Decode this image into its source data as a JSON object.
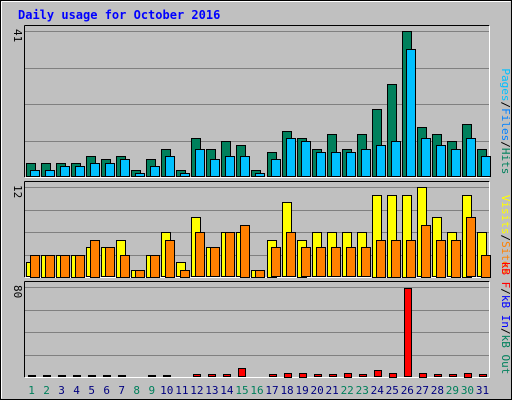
{
  "title": "Daily usage for October 2016",
  "colors": {
    "hits": "#00805c",
    "files": "#0080ff",
    "pages": "#00c0ff",
    "visits": "#ffff00",
    "sites": "#ff8000",
    "kbytes": "#ff0000",
    "kbin": "#0000ff",
    "kbout": "#00805c",
    "weekend": "#00805c",
    "weekday": "#000080",
    "title": "#0000ff"
  },
  "chart_data": {
    "type": "bar",
    "title": "Daily usage for October 2016",
    "categories": [
      "1",
      "2",
      "3",
      "4",
      "5",
      "6",
      "7",
      "8",
      "9",
      "10",
      "11",
      "12",
      "13",
      "14",
      "15",
      "16",
      "17",
      "18",
      "19",
      "20",
      "21",
      "22",
      "23",
      "24",
      "25",
      "26",
      "27",
      "28",
      "29",
      "30",
      "31"
    ],
    "weekend_days": [
      "1",
      "2",
      "8",
      "9",
      "15",
      "16",
      "22",
      "23",
      "29",
      "30"
    ],
    "panels": [
      {
        "name": "top",
        "ymax": 41,
        "ymax_label": "41",
        "legend": [
          {
            "text": "Pages",
            "color": "#00c0ff"
          },
          {
            "text": "/",
            "color": "#000000"
          },
          {
            "text": "Files",
            "color": "#0080ff"
          },
          {
            "text": "/",
            "color": "#000000"
          },
          {
            "text": "Hits",
            "color": "#00805c"
          }
        ],
        "series": [
          {
            "name": "Hits",
            "color": "#00805c",
            "values": [
              4,
              4,
              4,
              4,
              6,
              5,
              6,
              2,
              5,
              8,
              2,
              11,
              8,
              10,
              9,
              2,
              7,
              13,
              11,
              8,
              12,
              8,
              12,
              19,
              26,
              41,
              14,
              12,
              10,
              15,
              8
            ]
          },
          {
            "name": "Files",
            "color": "#0080ff",
            "values": [
              0,
              0,
              0,
              0,
              0,
              0,
              0,
              0,
              0,
              0,
              0,
              0,
              0,
              0,
              0,
              0,
              0,
              0,
              0,
              0,
              0,
              0,
              0,
              0,
              0,
              21,
              0,
              0,
              0,
              0,
              0
            ]
          },
          {
            "name": "Pages",
            "color": "#00c0ff",
            "values": [
              2,
              2,
              3,
              3,
              4,
              4,
              5,
              1,
              3,
              6,
              1,
              8,
              5,
              6,
              6,
              1,
              5,
              11,
              10,
              7,
              7,
              7,
              8,
              9,
              10,
              36,
              11,
              9,
              8,
              11,
              6
            ]
          }
        ]
      },
      {
        "name": "middle",
        "ymax": 12,
        "ymax_label": "12",
        "legend": [
          {
            "text": "Visits",
            "color": "#ffff00"
          },
          {
            "text": "/",
            "color": "#000000"
          },
          {
            "text": "Sites",
            "color": "#ff8000"
          }
        ],
        "series": [
          {
            "name": "Visits",
            "color": "#ffff00",
            "values": [
              2,
              3,
              3,
              3,
              4,
              4,
              5,
              1,
              3,
              6,
              2,
              8,
              4,
              6,
              6,
              1,
              5,
              10,
              5,
              6,
              6,
              6,
              6,
              11,
              11,
              11,
              12,
              8,
              6,
              11,
              6
            ]
          },
          {
            "name": "Sites",
            "color": "#ff8000",
            "values": [
              3,
              3,
              3,
              3,
              5,
              4,
              3,
              1,
              3,
              5,
              1,
              6,
              4,
              6,
              7,
              1,
              4,
              6,
              4,
              4,
              4,
              4,
              4,
              5,
              5,
              5,
              7,
              5,
              5,
              8,
              3
            ]
          }
        ]
      },
      {
        "name": "bottom",
        "ymax": 80,
        "ymax_label": "80",
        "legend": [
          {
            "text": "kB F",
            "color": "#ff0000"
          },
          {
            "text": "/",
            "color": "#000000"
          },
          {
            "text": "kB In",
            "color": "#0000ff"
          },
          {
            "text": "/",
            "color": "#000000"
          },
          {
            "text": "kB Out",
            "color": "#00805c"
          }
        ],
        "series": [
          {
            "name": "kB F",
            "color": "#ff0000",
            "values": [
              2,
              2,
              2,
              2,
              2,
              2,
              2,
              1,
              2,
              2,
              1,
              3,
              3,
              3,
              8,
              1,
              3,
              4,
              4,
              3,
              3,
              4,
              3,
              6,
              4,
              79,
              4,
              3,
              3,
              4,
              3
            ]
          }
        ]
      }
    ]
  }
}
